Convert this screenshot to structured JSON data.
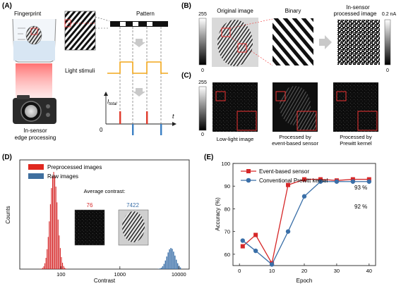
{
  "panel_A": {
    "label": "(A)",
    "fingerprint_label": "Fingerprint",
    "pattern_label": "Pattern",
    "light_label": "Light stimuli",
    "camera_label_1": "In-sensor",
    "camera_label_2": "edge processing",
    "itotal_label": "I",
    "itotal_sub": "total",
    "origin_label": "0",
    "time_label": "t"
  },
  "panel_B": {
    "label": "(B)",
    "scale_top": "255",
    "scale_bottom": "0",
    "original_label": "Original image",
    "binary_label": "Binary",
    "insensor_label_1": "In-sensor",
    "insensor_label_2": "processed image",
    "right_scale_top": "0.2 nA",
    "right_scale_bottom": "0"
  },
  "panel_C": {
    "label": "(C)",
    "scale_top": "255",
    "scale_bottom": "0",
    "img1_label": "Low-light image",
    "img2_label_1": "Processed by",
    "img2_label_2": "event-based sensor",
    "img3_label_1": "Processed by",
    "img3_label_2": "Prewitt kernel"
  },
  "panel_D": {
    "label": "(D)",
    "legend": [
      "Preprocessed images",
      "Raw images"
    ],
    "avg_contrast_title": "Average contrast:",
    "contrast_values": [
      "76",
      "7422"
    ]
  },
  "panel_E": {
    "label": "(E)",
    "annotations": [
      "93 %",
      "92 %"
    ]
  },
  "colors": {
    "red": "#d62728",
    "blue": "#3a6fa8",
    "red_legend": "#e0281f",
    "blue_legend": "#3f6f9f"
  },
  "chart_data": [
    {
      "type": "bar",
      "title": "",
      "xlabel": "Contrast",
      "ylabel": "Counts",
      "xscale": "log",
      "xticks": [
        "100",
        "1000",
        "10000"
      ],
      "xlim": [
        20,
        15000
      ],
      "series": [
        {
          "name": "Preprocessed images",
          "peak_x": 76,
          "range": [
            30,
            130
          ]
        },
        {
          "name": "Raw images",
          "peak_x": 7422,
          "range": [
            1800,
            11000
          ]
        }
      ],
      "legend_position": "top-left"
    },
    {
      "type": "line",
      "title": "",
      "xlabel": "Epoch",
      "ylabel": "Accuracy (%)",
      "xlim": [
        -2,
        42
      ],
      "ylim": [
        55,
        100
      ],
      "xticks": [
        0,
        10,
        20,
        30,
        40
      ],
      "yticks": [
        60,
        70,
        80,
        90,
        100
      ],
      "legend_position": "top-left",
      "series": [
        {
          "name": "Event-based sensor",
          "x": [
            1,
            5,
            10,
            15,
            20,
            25,
            30,
            35,
            40
          ],
          "y": [
            63.5,
            68.5,
            56,
            90.5,
            93,
            93,
            92.5,
            93,
            93
          ]
        },
        {
          "name": "Conventional Prewitt kernel",
          "x": [
            1,
            5,
            10,
            15,
            20,
            25,
            30,
            35,
            40
          ],
          "y": [
            66,
            61.5,
            55.5,
            70,
            85.5,
            92,
            92,
            92,
            92
          ]
        }
      ]
    }
  ]
}
